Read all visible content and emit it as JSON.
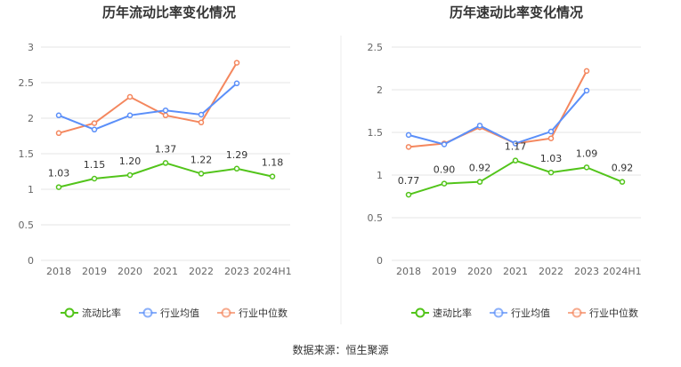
{
  "source": "数据来源：恒生聚源",
  "chart_data": [
    {
      "type": "line",
      "title": "历年流动比率变化情况",
      "categories": [
        "2018",
        "2019",
        "2020",
        "2021",
        "2022",
        "2023",
        "2024H1"
      ],
      "ylim": [
        0,
        3
      ],
      "yticks": [
        "0",
        "0.5",
        "1",
        "1.5",
        "2",
        "2.5",
        "3"
      ],
      "grid": true,
      "legend_placement": "bottom",
      "series": [
        {
          "name": "流动比率",
          "color": "#52c41a",
          "values": [
            1.03,
            1.15,
            1.2,
            1.37,
            1.22,
            1.29,
            1.18
          ],
          "labels": [
            "1.03",
            "1.15",
            "1.20",
            "1.37",
            "1.22",
            "1.29",
            "1.18"
          ]
        },
        {
          "name": "行业均值",
          "color": "#5b8ff9",
          "values": [
            2.04,
            1.84,
            2.04,
            2.11,
            2.05,
            2.49,
            null
          ]
        },
        {
          "name": "行业中位数",
          "color": "#f4875e",
          "values": [
            1.79,
            1.93,
            2.3,
            2.04,
            1.94,
            2.78,
            null
          ]
        }
      ]
    },
    {
      "type": "line",
      "title": "历年速动比率变化情况",
      "categories": [
        "2018",
        "2019",
        "2020",
        "2021",
        "2022",
        "2023",
        "2024H1"
      ],
      "ylim": [
        0,
        2.5
      ],
      "yticks": [
        "0",
        "0.5",
        "1",
        "1.5",
        "2",
        "2.5"
      ],
      "grid": true,
      "legend_placement": "bottom",
      "series": [
        {
          "name": "速动比率",
          "color": "#52c41a",
          "values": [
            0.77,
            0.9,
            0.92,
            1.17,
            1.03,
            1.09,
            0.92
          ],
          "labels": [
            "0.77",
            "0.90",
            "0.92",
            "1.17",
            "1.03",
            "1.09",
            "0.92"
          ]
        },
        {
          "name": "行业均值",
          "color": "#5b8ff9",
          "values": [
            1.47,
            1.36,
            1.58,
            1.37,
            1.51,
            1.99,
            null
          ]
        },
        {
          "name": "行业中位数",
          "color": "#f4875e",
          "values": [
            1.33,
            1.37,
            1.56,
            1.37,
            1.43,
            2.22,
            null
          ]
        }
      ]
    }
  ]
}
